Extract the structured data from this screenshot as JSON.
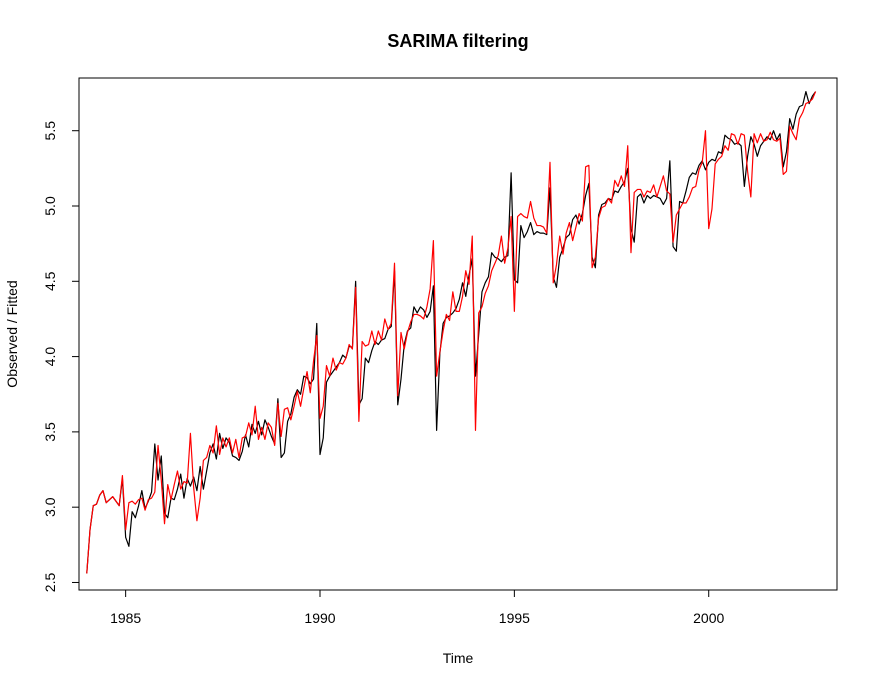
{
  "chart_data": {
    "type": "line",
    "title": "SARIMA filtering",
    "xlabel": "Time",
    "ylabel": "Observed / Fitted",
    "xlim": [
      1983.8,
      2003.3
    ],
    "ylim": [
      2.45,
      5.85
    ],
    "x_ticks": [
      1985,
      1990,
      1995,
      2000
    ],
    "y_ticks": [
      2.5,
      3.0,
      3.5,
      4.0,
      4.5,
      5.0,
      5.5
    ],
    "x_tick_labels": [
      "1985",
      "1990",
      "1995",
      "2000"
    ],
    "y_tick_labels": [
      "2.5",
      "3.0",
      "3.5",
      "4.0",
      "4.5",
      "5.0",
      "5.5"
    ],
    "grid": false,
    "legend": "none",
    "series": [
      {
        "color": "#000000",
        "x_start": 1984.0,
        "x_step": 0.08333333,
        "values": [
          2.56,
          2.85,
          3.01,
          3.02,
          3.08,
          3.11,
          3.03,
          3.05,
          3.07,
          3.04,
          3.01,
          3.19,
          2.8,
          2.74,
          2.97,
          2.93,
          3.01,
          3.11,
          2.99,
          3.04,
          3.1,
          3.42,
          3.18,
          3.34,
          2.96,
          2.93,
          3.06,
          3.05,
          3.12,
          3.22,
          3.06,
          3.19,
          3.14,
          3.2,
          3.11,
          3.27,
          3.12,
          3.24,
          3.36,
          3.42,
          3.32,
          3.49,
          3.39,
          3.46,
          3.43,
          3.34,
          3.33,
          3.31,
          3.37,
          3.48,
          3.4,
          3.55,
          3.49,
          3.57,
          3.48,
          3.58,
          3.53,
          3.47,
          3.42,
          3.72,
          3.33,
          3.36,
          3.57,
          3.62,
          3.73,
          3.78,
          3.75,
          3.87,
          3.86,
          3.82,
          3.85,
          4.22,
          3.35,
          3.46,
          3.83,
          3.87,
          3.9,
          3.93,
          3.96,
          4.01,
          3.99,
          4.07,
          4.06,
          4.5,
          3.68,
          3.72,
          3.99,
          3.96,
          4.04,
          4.1,
          4.08,
          4.11,
          4.12,
          4.18,
          4.2,
          4.57,
          3.68,
          3.85,
          4.08,
          4.17,
          4.19,
          4.33,
          4.29,
          4.33,
          4.31,
          4.26,
          4.3,
          4.47,
          3.51,
          4.02,
          4.22,
          4.26,
          4.27,
          4.29,
          4.32,
          4.38,
          4.49,
          4.4,
          4.54,
          4.65,
          3.87,
          4.15,
          4.43,
          4.49,
          4.53,
          4.69,
          4.66,
          4.65,
          4.63,
          4.66,
          4.67,
          5.22,
          4.51,
          4.49,
          4.87,
          4.79,
          4.83,
          4.89,
          4.81,
          4.83,
          4.82,
          4.82,
          4.81,
          5.12,
          4.53,
          4.46,
          4.66,
          4.72,
          4.79,
          4.81,
          4.91,
          4.94,
          4.88,
          4.95,
          5.07,
          5.15,
          4.66,
          4.59,
          4.94,
          5.01,
          5.02,
          5.05,
          5.04,
          5.1,
          5.09,
          5.13,
          5.16,
          5.25,
          4.85,
          4.76,
          5.06,
          5.08,
          5.02,
          5.07,
          5.05,
          5.07,
          5.06,
          5.05,
          5.01,
          5.05,
          5.3,
          4.73,
          4.7,
          5.03,
          5.02,
          5.1,
          5.19,
          5.22,
          5.21,
          5.27,
          5.3,
          5.24,
          5.29,
          5.31,
          5.3,
          5.36,
          5.35,
          5.47,
          5.45,
          5.44,
          5.41,
          5.42,
          5.4,
          5.13,
          5.33,
          5.46,
          5.41,
          5.33,
          5.4,
          5.43,
          5.46,
          5.44,
          5.5,
          5.44,
          5.48,
          5.26,
          5.36,
          5.58,
          5.51,
          5.61,
          5.66,
          5.67,
          5.76,
          5.68,
          5.73,
          5.76
        ]
      },
      {
        "color": "#ff0000",
        "x_start": 1984.0,
        "x_step": 0.08333333,
        "values": [
          2.56,
          2.85,
          3.01,
          3.02,
          3.08,
          3.11,
          3.03,
          3.05,
          3.07,
          3.04,
          3.01,
          3.21,
          2.85,
          3.03,
          3.04,
          3.02,
          3.05,
          3.06,
          2.98,
          3.05,
          3.06,
          3.1,
          3.41,
          3.18,
          2.89,
          3.15,
          3.05,
          3.15,
          3.24,
          3.12,
          3.17,
          3.16,
          3.49,
          3.13,
          2.91,
          3.06,
          3.31,
          3.33,
          3.41,
          3.36,
          3.54,
          3.35,
          3.46,
          3.4,
          3.46,
          3.36,
          3.45,
          3.33,
          3.46,
          3.47,
          3.56,
          3.48,
          3.67,
          3.45,
          3.53,
          3.45,
          3.56,
          3.53,
          3.41,
          3.69,
          3.47,
          3.65,
          3.66,
          3.58,
          3.67,
          3.77,
          3.67,
          3.79,
          3.9,
          3.76,
          3.97,
          4.14,
          3.59,
          3.67,
          3.94,
          3.87,
          3.99,
          3.91,
          3.96,
          3.95,
          3.99,
          4.08,
          4.05,
          4.46,
          3.57,
          4.1,
          4.07,
          4.08,
          4.17,
          4.08,
          4.17,
          4.11,
          4.25,
          4.18,
          4.22,
          4.62,
          3.74,
          4.16,
          4.05,
          4.16,
          4.23,
          4.28,
          4.28,
          4.27,
          4.25,
          4.33,
          4.45,
          4.77,
          3.87,
          4.03,
          4.17,
          4.28,
          4.24,
          4.43,
          4.3,
          4.3,
          4.4,
          4.57,
          4.48,
          4.8,
          3.51,
          4.29,
          4.33,
          4.42,
          4.47,
          4.57,
          4.62,
          4.67,
          4.8,
          4.62,
          4.72,
          4.93,
          4.3,
          4.93,
          4.95,
          4.93,
          4.92,
          5.03,
          4.92,
          4.87,
          4.87,
          4.86,
          4.82,
          5.29,
          4.49,
          4.61,
          4.8,
          4.68,
          4.82,
          4.89,
          4.77,
          4.86,
          4.95,
          4.9,
          5.26,
          5.27,
          4.59,
          4.66,
          4.92,
          4.99,
          5.0,
          5.05,
          5.02,
          5.17,
          5.13,
          5.2,
          5.13,
          5.4,
          4.69,
          5.09,
          5.11,
          5.11,
          5.06,
          5.1,
          5.09,
          5.14,
          5.06,
          5.13,
          5.2,
          5.1,
          5.08,
          4.76,
          4.94,
          4.98,
          5.02,
          5.02,
          5.06,
          5.12,
          5.13,
          5.24,
          5.29,
          5.5,
          4.85,
          4.98,
          5.28,
          5.31,
          5.33,
          5.4,
          5.37,
          5.48,
          5.47,
          5.41,
          5.48,
          5.47,
          5.23,
          5.06,
          5.48,
          5.42,
          5.48,
          5.43,
          5.44,
          5.49,
          5.44,
          5.43,
          5.45,
          5.21,
          5.23,
          5.53,
          5.48,
          5.44,
          5.58,
          5.62,
          5.68,
          5.69,
          5.71,
          5.76
        ]
      }
    ]
  }
}
